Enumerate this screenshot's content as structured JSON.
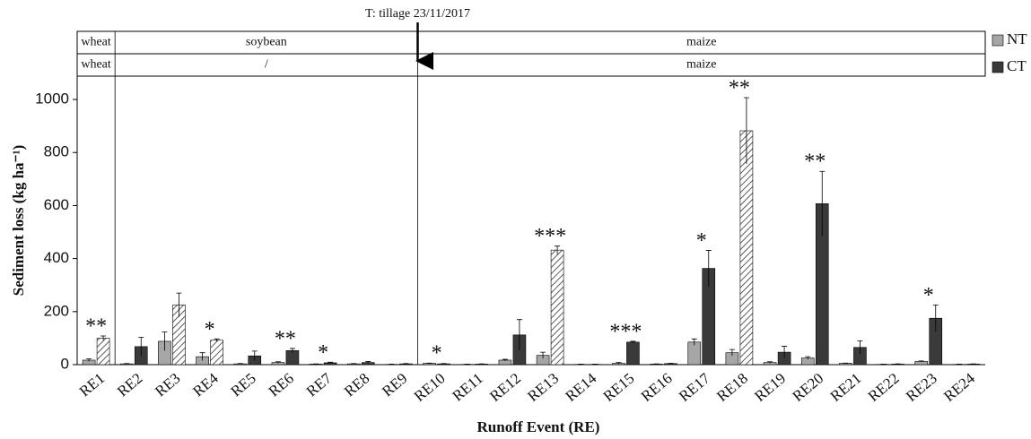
{
  "chart_data": {
    "type": "bar",
    "y_label": "Sediment loss (kg ha⁻¹)",
    "x_label": "Runoff Event (RE)",
    "annotation": "T: tillage 23/11/2017",
    "categories": [
      "RE1",
      "RE2",
      "RE3",
      "RE4",
      "RE5",
      "RE6",
      "RE7",
      "RE8",
      "RE9",
      "RE10",
      "RE11",
      "RE12",
      "RE13",
      "RE14",
      "RE15",
      "RE16",
      "RE17",
      "RE18",
      "RE19",
      "RE20",
      "RE21",
      "RE22",
      "RE23",
      "RE24"
    ],
    "series": [
      {
        "name": "NT",
        "color": "#a6a6a6",
        "values": [
          17,
          3,
          88,
          30,
          3,
          8,
          2,
          3,
          1,
          5,
          1,
          17,
          35,
          1,
          5,
          2,
          85,
          45,
          8,
          25,
          5,
          1,
          12,
          1
        ],
        "errors": [
          5,
          1,
          35,
          15,
          1,
          3,
          1,
          1,
          1,
          1,
          1,
          3,
          12,
          1,
          3,
          1,
          12,
          12,
          3,
          5,
          1,
          1,
          2,
          1
        ]
      },
      {
        "name": "CT",
        "color": "#3a3a3a",
        "values": [
          100,
          68,
          225,
          92,
          33,
          53,
          7,
          8,
          3,
          3,
          2,
          112,
          432,
          1,
          85,
          4,
          363,
          882,
          47,
          607,
          65,
          2,
          175,
          2
        ],
        "errors": [
          8,
          35,
          45,
          5,
          18,
          8,
          2,
          4,
          1,
          1,
          1,
          58,
          15,
          1,
          3,
          1,
          68,
          125,
          22,
          122,
          25,
          1,
          50,
          1
        ],
        "hatched": [
          true,
          false,
          true,
          true,
          false,
          false,
          false,
          false,
          false,
          false,
          false,
          false,
          true,
          false,
          false,
          false,
          false,
          true,
          false,
          false,
          false,
          false,
          false,
          false
        ]
      }
    ],
    "significance": [
      "**",
      null,
      null,
      "*",
      null,
      "**",
      "*",
      null,
      null,
      "*",
      null,
      null,
      "***",
      null,
      "***",
      null,
      "*",
      "**",
      null,
      "**",
      null,
      null,
      "*",
      null
    ],
    "periods": [
      {
        "labels": [
          "wheat",
          "wheat"
        ],
        "span": 1
      },
      {
        "labels": [
          "soybean",
          "/"
        ],
        "span": 8
      },
      {
        "labels": [
          "maize",
          "maize"
        ],
        "span": 15
      }
    ],
    "ylim": [
      0,
      1088
    ],
    "yticks": [
      0,
      200,
      400,
      600,
      800,
      1000
    ],
    "legend": "right"
  }
}
